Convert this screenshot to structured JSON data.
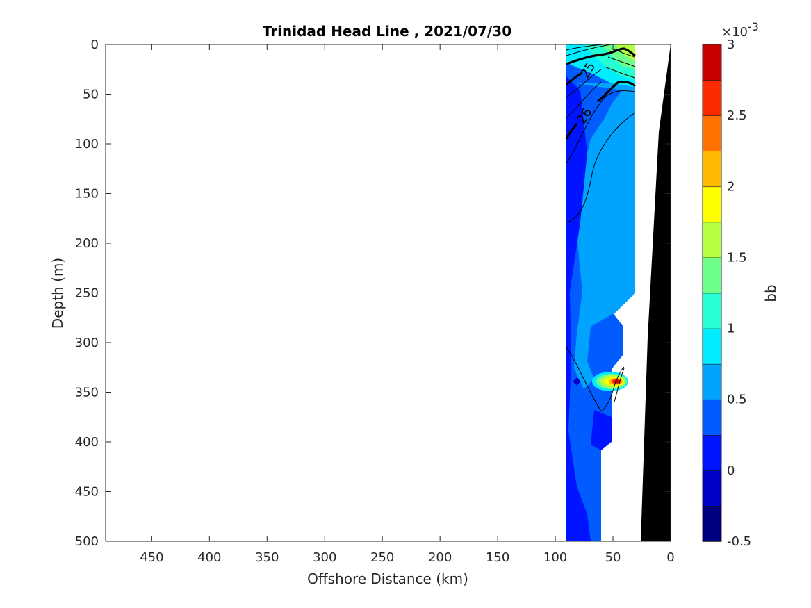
{
  "chart_data": {
    "type": "heatmap",
    "title": "Trinidad Head Line , 2021/07/30",
    "xlabel": "Offshore Distance (km)",
    "ylabel": "Depth (m)",
    "xlim": [
      490,
      0
    ],
    "ylim": [
      500,
      0
    ],
    "x_reversed": true,
    "y_reversed": true,
    "xticks": [
      450,
      400,
      350,
      300,
      250,
      200,
      150,
      100,
      50,
      0
    ],
    "yticks": [
      0,
      50,
      100,
      150,
      200,
      250,
      300,
      350,
      400,
      450,
      500
    ],
    "grid": false,
    "colorbar": {
      "label": "bb",
      "multiplier": "×10",
      "multiplier_exp": "-3",
      "ticks": [
        3,
        2.5,
        2,
        1.5,
        1,
        0.5,
        0,
        -0.5
      ],
      "tick_labels": [
        "3",
        "2.5",
        "2",
        "1.5",
        "1",
        "0.5",
        "0",
        "-0.5"
      ],
      "range": [
        -0.5,
        3
      ],
      "levels": 14,
      "colors": [
        "#00007f",
        "#0000c8",
        "#0014ff",
        "#005cff",
        "#00a4ff",
        "#00ecff",
        "#25ffd2",
        "#6dff8a",
        "#b5ff42",
        "#fdff00",
        "#ffb900",
        "#ff7200",
        "#ff2b00",
        "#c80000"
      ]
    },
    "data_region": {
      "x_range": [
        30,
        90
      ],
      "depth_range": [
        0,
        500
      ],
      "background_value_e3": 0.1,
      "patches": [
        {
          "name": "surface-maximum",
          "x": [
            30,
            80
          ],
          "depth": [
            0,
            50
          ],
          "max_value_e3": 1.6
        },
        {
          "name": "subsurface-peak",
          "x": 48,
          "depth": 341,
          "max_value_e3": 3.0
        }
      ]
    },
    "contours": [
      {
        "level": 25,
        "label": "25",
        "style": "bold"
      },
      {
        "level": 26,
        "label": "26",
        "style": "bold"
      }
    ],
    "bathymetry": {
      "color": "#000000",
      "profile": [
        [
          0,
          0
        ],
        [
          10,
          90
        ],
        [
          17,
          300
        ],
        [
          25,
          500
        ]
      ]
    }
  }
}
